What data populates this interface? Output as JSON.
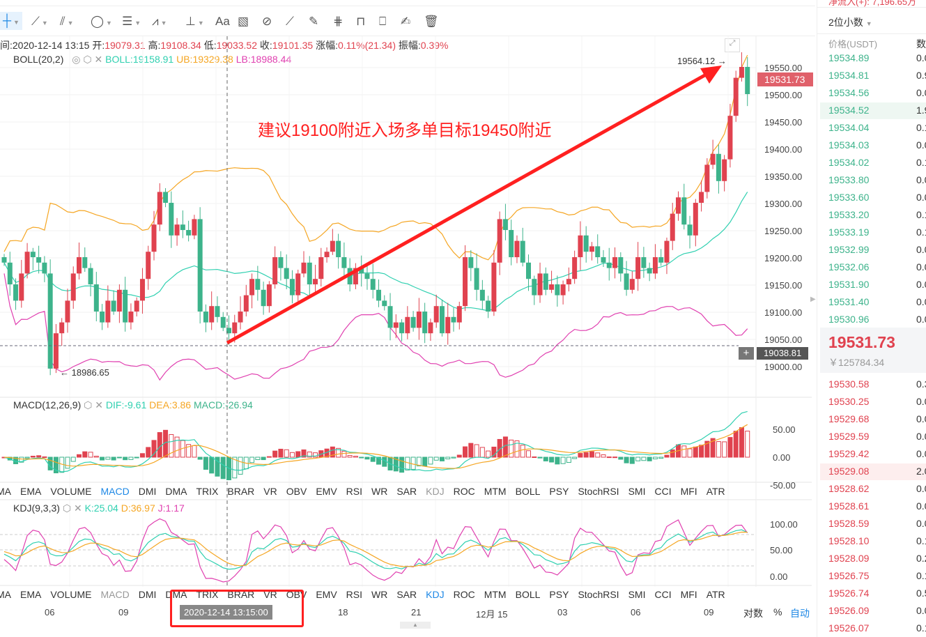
{
  "toolbar": {
    "tools": [
      "crosshair-icon",
      "trend-line-icon",
      "parallel-line-icon",
      "circle-icon",
      "horizontal-lines-icon",
      "wave-pattern-icon",
      "measure-icon",
      "text-icon",
      "fib-ruler-icon",
      "magnet-icon",
      "ruler-icon",
      "brush-icon",
      "hide-drawings-icon",
      "lock-icon",
      "bookmark-icon",
      "note-icon",
      "delete-icon"
    ],
    "text_tool": "Aa"
  },
  "info": {
    "time_label": "间:",
    "time": "2020-12-14 13:15",
    "open_label": "开:",
    "open": "19079.31",
    "high_label": "高:",
    "high": "19108.34",
    "low_label": "低:",
    "low": "19033.52",
    "close_label": "收:",
    "close": "19101.35",
    "change_label": "涨幅:",
    "change": "0.11%(21.34)",
    "amp_label": "振幅:",
    "amp": "0.39%"
  },
  "boll": {
    "name": "BOLL(20,2)",
    "mid": "BOLL:19158.91",
    "ub": "UB:19329.38",
    "lb": "LB:18988.44"
  },
  "price_axis": {
    "ticks": [
      "19550.00",
      "19500.00",
      "19450.00",
      "19400.00",
      "19350.00",
      "19300.00",
      "19250.00",
      "19200.00",
      "19150.00",
      "19100.00",
      "19050.00",
      "19000.00"
    ],
    "current": "19531.73",
    "crosshair": "19038.81",
    "max_label": "19564.12",
    "min_label": "18986.65"
  },
  "annotation": "建议19100附近入场多单目标19450附近",
  "macd": {
    "name": "MACD(12,26,9)",
    "dif": "DIF:-9.61",
    "dea": "DEA:3.86",
    "macd": "MACD:-26.94",
    "ticks": [
      "50.00",
      "0.00",
      "-50.00"
    ]
  },
  "kdj": {
    "name": "KDJ(9,3,3)",
    "k": "K:25.04",
    "d": "D:36.97",
    "j": "J:1.17",
    "ticks": [
      "100.00",
      "50.00",
      "0.00"
    ]
  },
  "indicator_tabs": [
    "MA",
    "EMA",
    "VOLUME",
    "MACD",
    "DMI",
    "DMA",
    "TRIX",
    "BRAR",
    "VR",
    "OBV",
    "EMV",
    "RSI",
    "WR",
    "SAR",
    "KDJ",
    "ROC",
    "MTM",
    "BOLL",
    "PSY",
    "StochRSI",
    "SMI",
    "CCI",
    "MFI",
    "ATR"
  ],
  "time_axis": {
    "labels": [
      "06",
      "09",
      "18",
      "21",
      "12月 15",
      "03",
      "06",
      "09"
    ],
    "crosshair": "2020-12-14 13:15:00",
    "log": "对数",
    "percent": "%",
    "auto": "自动"
  },
  "orderbook": {
    "top_text": "净流入(+): 7,196.65万",
    "precision": "2位小数",
    "price_header": "价格(USDT)",
    "amount_header": "数",
    "asks": [
      [
        "19534.89",
        "0.0"
      ],
      [
        "19534.81",
        "0.9"
      ],
      [
        "19534.56",
        "0.0"
      ],
      [
        "19534.52",
        "1.9"
      ],
      [
        "19534.04",
        "0.1"
      ],
      [
        "19534.03",
        "0.0"
      ],
      [
        "19534.02",
        "0.1"
      ],
      [
        "19533.80",
        "0.0"
      ],
      [
        "19533.60",
        "0.0"
      ],
      [
        "19533.20",
        "0.1"
      ],
      [
        "19533.19",
        "0.1"
      ],
      [
        "19532.99",
        "0.0"
      ],
      [
        "19532.06",
        "0.0"
      ],
      [
        "19531.90",
        "0.0"
      ],
      [
        "19531.40",
        "0.0"
      ],
      [
        "19530.96",
        "0.0"
      ]
    ],
    "last_price": "19531.73",
    "last_cny": "￥125784.34",
    "bids": [
      [
        "19530.58",
        "0.3"
      ],
      [
        "19530.25",
        "0.0"
      ],
      [
        "19529.68",
        "0.0"
      ],
      [
        "19529.59",
        "0.0"
      ],
      [
        "19529.42",
        "0.0"
      ],
      [
        "19529.08",
        "2.0"
      ],
      [
        "19528.62",
        "0.0"
      ],
      [
        "19528.61",
        "0.0"
      ],
      [
        "19528.59",
        "0.0"
      ],
      [
        "19528.10",
        "0.1"
      ],
      [
        "19528.09",
        "0.2"
      ],
      [
        "19526.75",
        "0.1"
      ],
      [
        "19526.74",
        "0.5"
      ],
      [
        "19526.09",
        "0.0"
      ],
      [
        "19526.07",
        "0.1"
      ]
    ]
  },
  "colors": {
    "up": "#e0424f",
    "down": "#3db38b",
    "boll_mid": "#2fd0b0",
    "boll_ub": "#f5a623",
    "boll_lb": "#e040b0",
    "annotation": "#ff2020",
    "accent": "#1e88e5"
  },
  "chart_data": {
    "type": "candlestick",
    "closes": [
      19190,
      19150,
      19120,
      19170,
      19210,
      19200,
      19190,
      19170,
      18995,
      19060,
      19080,
      19120,
      19170,
      19200,
      19180,
      19150,
      19100,
      19080,
      19120,
      19100,
      19140,
      19080,
      19100,
      19120,
      19160,
      19210,
      19260,
      19320,
      19300,
      19240,
      19260,
      19250,
      19240,
      19270,
      19100,
      19080,
      19110,
      19090,
      19070,
      19060,
      19080,
      19100,
      19130,
      19160,
      19140,
      19110,
      19150,
      19200,
      19180,
      19160,
      19130,
      19170,
      19190,
      19150,
      19160,
      19200,
      19210,
      19230,
      19200,
      19180,
      19150,
      19180,
      19170,
      19160,
      19140,
      19120,
      19110,
      19070,
      19080,
      19060,
      19090,
      19070,
      19100,
      19060,
      19080,
      19110,
      19060,
      19090,
      19080,
      19110,
      19200,
      19180,
      19140,
      19120,
      19100,
      19190,
      19270,
      19250,
      19200,
      19230,
      19190,
      19160,
      19130,
      19170,
      19140,
      19150,
      19130,
      19150,
      19160,
      19200,
      19240,
      19210,
      19220,
      19200,
      19190,
      19180,
      19200,
      19170,
      19140,
      19160,
      19200,
      19180,
      19170,
      19200,
      19190,
      19230,
      19280,
      19310,
      19260,
      19240,
      19300,
      19320,
      19370,
      19390,
      19340,
      19380,
      19460,
      19530,
      19550,
      19500
    ],
    "ylim": [
      18960,
      19570
    ]
  }
}
